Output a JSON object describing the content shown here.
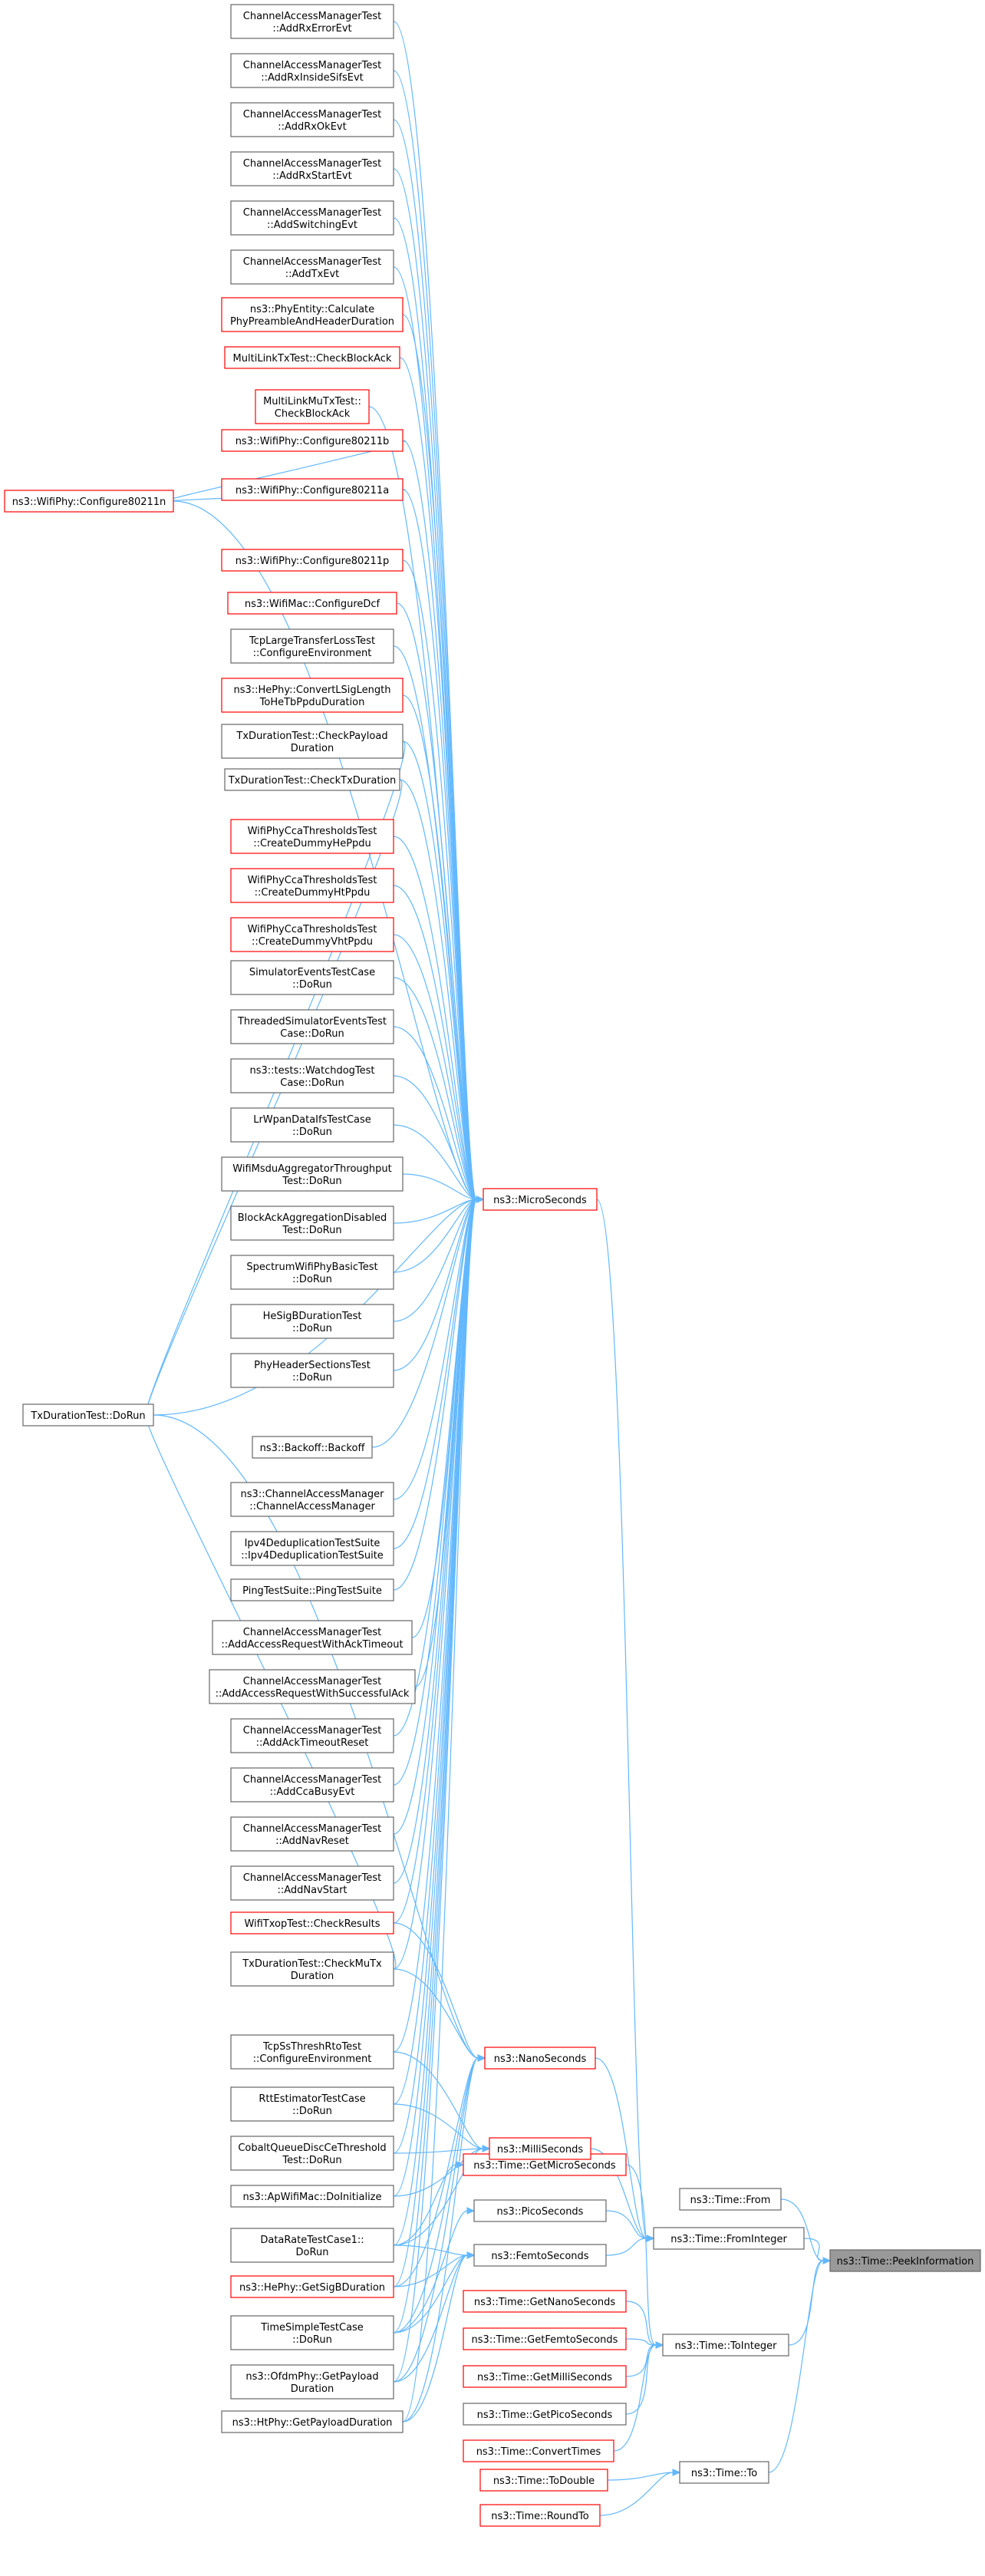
{
  "nodes": {
    "peek": {
      "label": [
        "ns3::Time::PeekInformation"
      ],
      "style": "root"
    },
    "from": {
      "label": [
        "ns3::Time::From"
      ],
      "style": "normal"
    },
    "fromInt": {
      "label": [
        "ns3::Time::FromInteger"
      ],
      "style": "normal"
    },
    "toInt": {
      "label": [
        "ns3::Time::ToInteger"
      ],
      "style": "normal"
    },
    "to": {
      "label": [
        "ns3::Time::To"
      ],
      "style": "normal"
    },
    "toDouble": {
      "label": [
        "ns3::Time::ToDouble"
      ],
      "style": "red"
    },
    "roundTo": {
      "label": [
        "ns3::Time::RoundTo"
      ],
      "style": "red"
    },
    "getNano": {
      "label": [
        "ns3::Time::GetNanoSeconds"
      ],
      "style": "red"
    },
    "getFemto": {
      "label": [
        "ns3::Time::GetFemtoSeconds"
      ],
      "style": "red"
    },
    "getMilli": {
      "label": [
        "ns3::Time::GetMilliSeconds"
      ],
      "style": "red"
    },
    "getPico": {
      "label": [
        "ns3::Time::GetPicoSeconds"
      ],
      "style": "normal"
    },
    "convertTimes": {
      "label": [
        "ns3::Time::ConvertTimes"
      ],
      "style": "red"
    },
    "getMicro": {
      "label": [
        "ns3::Time::GetMicroSeconds"
      ],
      "style": "red"
    },
    "micro": {
      "label": [
        "ns3::MicroSeconds"
      ],
      "style": "red"
    },
    "nano": {
      "label": [
        "ns3::NanoSeconds"
      ],
      "style": "red"
    },
    "milli": {
      "label": [
        "ns3::MilliSeconds"
      ],
      "style": "red"
    },
    "pico": {
      "label": [
        "ns3::PicoSeconds"
      ],
      "style": "normal"
    },
    "femto": {
      "label": [
        "ns3::FemtoSeconds"
      ],
      "style": "normal"
    },
    "c1": {
      "label": [
        "ChannelAccessManagerTest",
        "::AddRxErrorEvt"
      ],
      "style": "normal"
    },
    "c2": {
      "label": [
        "ChannelAccessManagerTest",
        "::AddRxInsideSifsEvt"
      ],
      "style": "normal"
    },
    "c3": {
      "label": [
        "ChannelAccessManagerTest",
        "::AddRxOkEvt"
      ],
      "style": "normal"
    },
    "c4": {
      "label": [
        "ChannelAccessManagerTest",
        "::AddRxStartEvt"
      ],
      "style": "normal"
    },
    "c5": {
      "label": [
        "ChannelAccessManagerTest",
        "::AddSwitchingEvt"
      ],
      "style": "normal"
    },
    "c6": {
      "label": [
        "ChannelAccessManagerTest",
        "::AddTxEvt"
      ],
      "style": "normal"
    },
    "c7": {
      "label": [
        "ns3::PhyEntity::Calculate",
        "PhyPreambleAndHeaderDuration"
      ],
      "style": "red"
    },
    "c8": {
      "label": [
        "MultiLinkTxTest::CheckBlockAck"
      ],
      "style": "red"
    },
    "c9": {
      "label": [
        "MultiLinkMuTxTest::",
        "CheckBlockAck"
      ],
      "style": "red"
    },
    "c10": {
      "label": [
        "ns3::WifiPhy::Configure80211b"
      ],
      "style": "red"
    },
    "c11": {
      "label": [
        "ns3::WifiPhy::Configure80211a"
      ],
      "style": "red"
    },
    "c12": {
      "label": [
        "ns3::WifiPhy::Configure80211p"
      ],
      "style": "red"
    },
    "c13": {
      "label": [
        "ns3::WifiMac::ConfigureDcf"
      ],
      "style": "red"
    },
    "c14": {
      "label": [
        "TcpLargeTransferLossTest",
        "::ConfigureEnvironment"
      ],
      "style": "normal"
    },
    "c15": {
      "label": [
        "ns3::HePhy::ConvertLSigLength",
        "ToHeTbPpduDuration"
      ],
      "style": "red"
    },
    "c16": {
      "label": [
        "TxDurationTest::CheckPayload",
        "Duration"
      ],
      "style": "normal"
    },
    "c17": {
      "label": [
        "TxDurationTest::CheckTxDuration"
      ],
      "style": "normal"
    },
    "c18": {
      "label": [
        "WifiPhyCcaThresholdsTest",
        "::CreateDummyHePpdu"
      ],
      "style": "red"
    },
    "c19": {
      "label": [
        "WifiPhyCcaThresholdsTest",
        "::CreateDummyHtPpdu"
      ],
      "style": "red"
    },
    "c20": {
      "label": [
        "WifiPhyCcaThresholdsTest",
        "::CreateDummyVhtPpdu"
      ],
      "style": "red"
    },
    "c21": {
      "label": [
        "SimulatorEventsTestCase",
        "::DoRun"
      ],
      "style": "normal"
    },
    "c22": {
      "label": [
        "ThreadedSimulatorEventsTest",
        "Case::DoRun"
      ],
      "style": "normal"
    },
    "c23": {
      "label": [
        "ns3::tests::WatchdogTest",
        "Case::DoRun"
      ],
      "style": "normal"
    },
    "c24": {
      "label": [
        "LrWpanDataIfsTestCase",
        "::DoRun"
      ],
      "style": "normal"
    },
    "c25": {
      "label": [
        "WifiMsduAggregatorThroughput",
        "Test::DoRun"
      ],
      "style": "normal"
    },
    "c26": {
      "label": [
        "BlockAckAggregationDisabled",
        "Test::DoRun"
      ],
      "style": "normal"
    },
    "c27": {
      "label": [
        "SpectrumWifiPhyBasicTest",
        "::DoRun"
      ],
      "style": "normal"
    },
    "c28": {
      "label": [
        "HeSigBDurationTest",
        "::DoRun"
      ],
      "style": "normal"
    },
    "c29": {
      "label": [
        "PhyHeaderSectionsTest",
        "::DoRun"
      ],
      "style": "normal"
    },
    "c30": {
      "label": [
        "ns3::Backoff::Backoff"
      ],
      "style": "normal"
    },
    "c31": {
      "label": [
        "ns3::ChannelAccessManager",
        "::ChannelAccessManager"
      ],
      "style": "normal"
    },
    "c32": {
      "label": [
        "Ipv4DeduplicationTestSuite",
        "::Ipv4DeduplicationTestSuite"
      ],
      "style": "normal"
    },
    "c33": {
      "label": [
        "PingTestSuite::PingTestSuite"
      ],
      "style": "normal"
    },
    "c34": {
      "label": [
        "ChannelAccessManagerTest",
        "::AddAccessRequestWithAckTimeout"
      ],
      "style": "normal"
    },
    "c35": {
      "label": [
        "ChannelAccessManagerTest",
        "::AddAccessRequestWithSuccessfulAck"
      ],
      "style": "normal"
    },
    "c36": {
      "label": [
        "ChannelAccessManagerTest",
        "::AddAckTimeoutReset"
      ],
      "style": "normal"
    },
    "c37": {
      "label": [
        "ChannelAccessManagerTest",
        "::AddCcaBusyEvt"
      ],
      "style": "normal"
    },
    "c38": {
      "label": [
        "ChannelAccessManagerTest",
        "::AddNavReset"
      ],
      "style": "normal"
    },
    "c39": {
      "label": [
        "ChannelAccessManagerTest",
        "::AddNavStart"
      ],
      "style": "normal"
    },
    "c40": {
      "label": [
        "WifiTxopTest::CheckResults"
      ],
      "style": "red"
    },
    "c41": {
      "label": [
        "TxDurationTest::CheckMuTx",
        "Duration"
      ],
      "style": "normal"
    },
    "c42": {
      "label": [
        "TcpSsThreshRtoTest",
        "::ConfigureEnvironment"
      ],
      "style": "normal"
    },
    "c43": {
      "label": [
        "RttEstimatorTestCase",
        "::DoRun"
      ],
      "style": "normal"
    },
    "c44": {
      "label": [
        "CobaltQueueDiscCeThreshold",
        "Test::DoRun"
      ],
      "style": "normal"
    },
    "c45": {
      "label": [
        "ns3::ApWifiMac::DoInitialize"
      ],
      "style": "normal"
    },
    "c46": {
      "label": [
        "DataRateTestCase1::",
        "DoRun"
      ],
      "style": "normal"
    },
    "c47": {
      "label": [
        "ns3::HePhy::GetSigBDuration"
      ],
      "style": "red"
    },
    "c48": {
      "label": [
        "TimeSimpleTestCase",
        "::DoRun"
      ],
      "style": "normal"
    },
    "c49": {
      "label": [
        "ns3::OfdmPhy::GetPayload",
        "Duration"
      ],
      "style": "normal"
    },
    "c50": {
      "label": [
        "ns3::HtPhy::GetPayloadDuration"
      ],
      "style": "normal"
    },
    "n80211n": {
      "label": [
        "ns3::WifiPhy::Configure80211n"
      ],
      "style": "red"
    },
    "txDoRun": {
      "label": [
        "TxDurationTest::DoRun"
      ],
      "style": "normal"
    }
  }
}
